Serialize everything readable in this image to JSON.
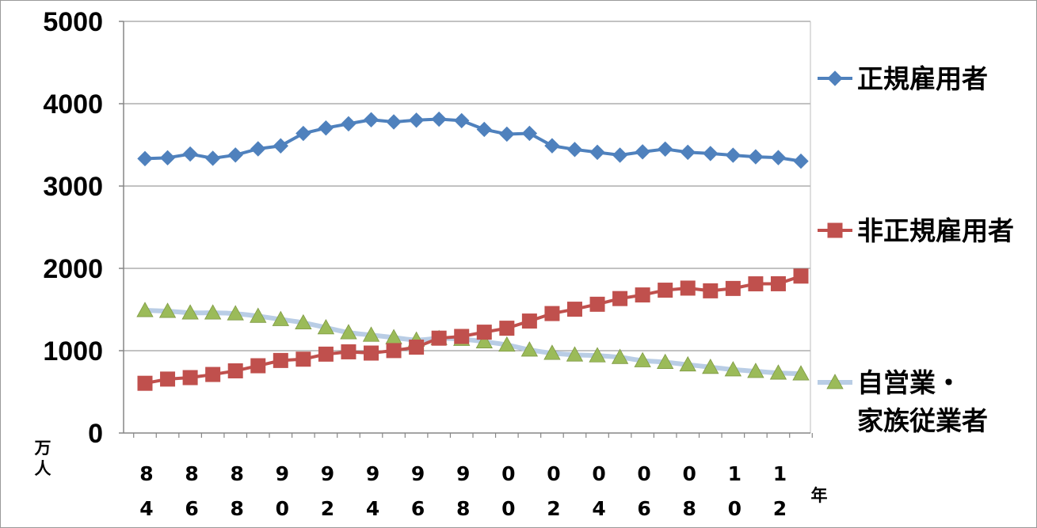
{
  "chart_data": {
    "type": "line",
    "title": "",
    "ylabel": "万人",
    "xlabel": "年",
    "ylim": [
      0,
      5000
    ],
    "yticks": [
      "5000",
      "4000",
      "3000",
      "2000",
      "1000",
      "0"
    ],
    "x": [
      1984,
      1985,
      1986,
      1987,
      1988,
      1989,
      1990,
      1991,
      1992,
      1993,
      1994,
      1995,
      1996,
      1997,
      1998,
      1999,
      2000,
      2001,
      2002,
      2003,
      2004,
      2005,
      2006,
      2007,
      2008,
      2009,
      2010,
      2011,
      2012,
      2013
    ],
    "xtick_labels": [
      {
        "top": "8",
        "bottom": "4"
      },
      {
        "top": "8",
        "bottom": "6"
      },
      {
        "top": "8",
        "bottom": "8"
      },
      {
        "top": "9",
        "bottom": "0"
      },
      {
        "top": "9",
        "bottom": "2"
      },
      {
        "top": "9",
        "bottom": "4"
      },
      {
        "top": "9",
        "bottom": "6"
      },
      {
        "top": "9",
        "bottom": "8"
      },
      {
        "top": "0",
        "bottom": "0"
      },
      {
        "top": "0",
        "bottom": "2"
      },
      {
        "top": "0",
        "bottom": "4"
      },
      {
        "top": "0",
        "bottom": "6"
      },
      {
        "top": "0",
        "bottom": "8"
      },
      {
        "top": "1",
        "bottom": "0"
      },
      {
        "top": "1",
        "bottom": "2"
      }
    ],
    "grid": "horizontal",
    "legend_position": "right",
    "series": [
      {
        "name": "正規雇用者",
        "name_lines": [
          "正規雇用者"
        ],
        "color": "#4F81BD",
        "marker": "diamond",
        "values": [
          3333,
          3343,
          3389,
          3337,
          3377,
          3452,
          3488,
          3639,
          3705,
          3756,
          3805,
          3779,
          3800,
          3812,
          3794,
          3688,
          3630,
          3640,
          3489,
          3444,
          3410,
          3375,
          3415,
          3449,
          3410,
          3395,
          3374,
          3355,
          3345,
          3302
        ]
      },
      {
        "name": "非正規雇用者",
        "name_lines": [
          "非正規雇用者"
        ],
        "color": "#C0504D",
        "marker": "square",
        "values": [
          604,
          655,
          673,
          711,
          755,
          817,
          881,
          897,
          958,
          986,
          971,
          1001,
          1043,
          1152,
          1173,
          1225,
          1273,
          1360,
          1451,
          1504,
          1564,
          1633,
          1677,
          1735,
          1760,
          1727,
          1756,
          1812,
          1813,
          1906
        ]
      },
      {
        "name": "自営業・家族従業者",
        "name_lines": [
          "自営業・",
          "家族従業者"
        ],
        "color": "#9BBB59",
        "line_color": "#B9CDE5",
        "marker": "triangle",
        "values": [
          1490,
          1480,
          1460,
          1460,
          1450,
          1420,
          1380,
          1340,
          1280,
          1220,
          1190,
          1160,
          1130,
          1150,
          1140,
          1110,
          1070,
          1010,
          970,
          950,
          940,
          920,
          880,
          860,
          830,
          800,
          770,
          750,
          730,
          720
        ]
      }
    ]
  }
}
